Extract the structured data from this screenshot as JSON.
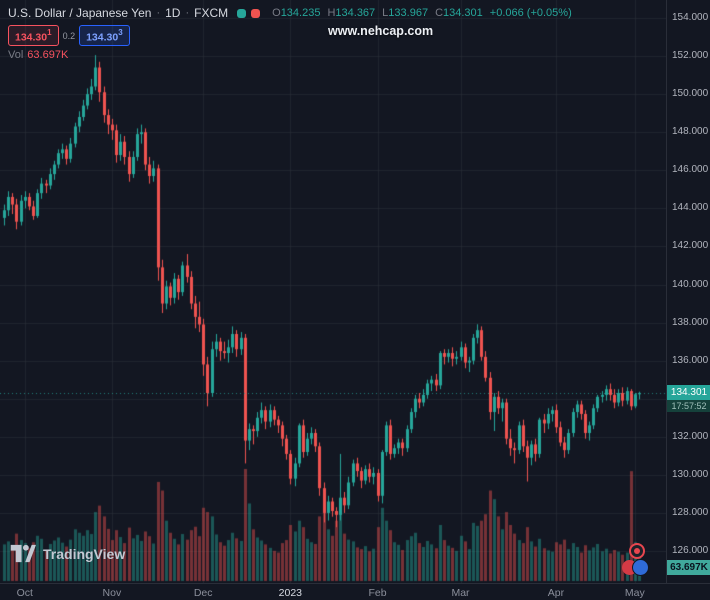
{
  "header": {
    "title": "U.S. Dollar / Japanese Yen",
    "separator": "·",
    "interval": "1D",
    "feed": "FXCM",
    "ohlc": {
      "o_label": "O",
      "o": "134.235",
      "h_label": "H",
      "h": "134.367",
      "l_label": "L",
      "l": "133.967",
      "c_label": "C",
      "c": "134.301",
      "change": "+0.066 (+0.05%)"
    },
    "bid": {
      "main": "134.30",
      "sup": "1"
    },
    "spread": "0.2",
    "ask": {
      "main": "134.30",
      "sup": "3"
    },
    "vol_label": "Vol",
    "vol_value": "63.697K"
  },
  "watermark_text": "www.nehcap.com",
  "logo": {
    "text": "TradingView"
  },
  "axis_badges": {
    "last_price": "134.301",
    "countdown": "17:57:52",
    "volume": "63.697K"
  },
  "chart_data": {
    "type": "candlestick",
    "title": "U.S. Dollar / Japanese Yen · 1D · FXCM",
    "symbol": "USD/JPY",
    "interval": "1D",
    "exchange": "FXCM",
    "legend_position": "top-left",
    "grid": true,
    "y_range": [
      126,
      154
    ],
    "y_ticks": [
      "154.000",
      "152.000",
      "150.000",
      "148.000",
      "146.000",
      "144.000",
      "142.000",
      "140.000",
      "138.000",
      "136.000",
      "134.000",
      "132.000",
      "130.000",
      "128.000",
      "126.000"
    ],
    "x_labels": [
      {
        "label": "Oct",
        "index": 5
      },
      {
        "label": "Nov",
        "index": 26
      },
      {
        "label": "Dec",
        "index": 48
      },
      {
        "label": "2023",
        "index": 69,
        "major": true
      },
      {
        "label": "Feb",
        "index": 90
      },
      {
        "label": "Mar",
        "index": 110
      },
      {
        "label": "Apr",
        "index": 133
      },
      {
        "label": "May",
        "index": 152
      }
    ],
    "last_price": 134.301,
    "last_volume_k": 63.697,
    "colors": {
      "bg": "#131722",
      "up": "#26a69a",
      "down": "#ef5350",
      "vol_up": "rgba(38,166,154,0.45)",
      "vol_down": "rgba(239,83,80,0.45)",
      "grid": "rgba(42,46,57,0.6)",
      "last_price_line": "rgba(38,166,154,0.75)",
      "accent_blue": "#2962ff",
      "accent_red": "#f7525f"
    },
    "candles": [
      [
        143.5,
        144.2,
        143.1,
        143.9,
        85
      ],
      [
        143.9,
        144.9,
        143.6,
        144.6,
        92
      ],
      [
        144.6,
        144.8,
        143.7,
        144.2,
        78
      ],
      [
        144.2,
        144.5,
        142.9,
        143.3,
        110
      ],
      [
        143.3,
        144.7,
        143.1,
        144.4,
        95
      ],
      [
        144.4,
        144.9,
        144.0,
        144.6,
        88
      ],
      [
        144.6,
        144.8,
        143.9,
        144.1,
        76
      ],
      [
        144.1,
        144.4,
        143.4,
        143.6,
        90
      ],
      [
        143.6,
        145.0,
        143.5,
        144.8,
        105
      ],
      [
        144.8,
        145.6,
        144.5,
        145.3,
        98
      ],
      [
        145.3,
        145.5,
        144.8,
        145.2,
        72
      ],
      [
        145.2,
        146.1,
        145.0,
        145.8,
        86
      ],
      [
        145.8,
        146.5,
        145.5,
        146.3,
        94
      ],
      [
        146.3,
        147.1,
        146.1,
        146.9,
        101
      ],
      [
        146.9,
        147.4,
        146.6,
        147.1,
        89
      ],
      [
        147.1,
        147.3,
        146.3,
        146.6,
        80
      ],
      [
        146.6,
        147.7,
        146.4,
        147.4,
        96
      ],
      [
        147.4,
        148.5,
        147.2,
        148.3,
        120
      ],
      [
        148.3,
        149.1,
        148.0,
        148.8,
        112
      ],
      [
        148.8,
        149.7,
        148.6,
        149.4,
        105
      ],
      [
        149.4,
        150.3,
        149.2,
        150.0,
        118
      ],
      [
        150.0,
        150.8,
        149.7,
        150.4,
        109
      ],
      [
        150.4,
        152.05,
        150.2,
        151.4,
        160
      ],
      [
        151.4,
        151.7,
        149.6,
        150.1,
        175
      ],
      [
        150.1,
        150.4,
        148.5,
        148.9,
        150
      ],
      [
        148.9,
        149.2,
        147.9,
        148.4,
        121
      ],
      [
        148.4,
        148.7,
        147.6,
        148.1,
        95
      ],
      [
        148.1,
        148.4,
        146.4,
        146.8,
        118
      ],
      [
        146.8,
        147.9,
        146.5,
        147.5,
        102
      ],
      [
        147.5,
        147.8,
        146.3,
        146.7,
        88
      ],
      [
        146.7,
        147.0,
        145.4,
        145.8,
        124
      ],
      [
        145.8,
        147.0,
        145.6,
        146.7,
        99
      ],
      [
        146.7,
        148.2,
        146.5,
        147.9,
        107
      ],
      [
        147.9,
        148.4,
        147.4,
        148.0,
        93
      ],
      [
        148.0,
        148.2,
        146.0,
        146.3,
        115
      ],
      [
        146.3,
        146.7,
        145.3,
        145.7,
        104
      ],
      [
        145.7,
        146.5,
        145.4,
        146.1,
        87
      ],
      [
        146.1,
        146.3,
        140.2,
        140.9,
        230
      ],
      [
        140.9,
        141.3,
        138.5,
        139.0,
        210
      ],
      [
        139.0,
        140.2,
        138.7,
        139.9,
        140
      ],
      [
        139.9,
        140.1,
        138.9,
        139.3,
        112
      ],
      [
        139.3,
        140.6,
        139.0,
        140.3,
        98
      ],
      [
        140.3,
        140.5,
        139.2,
        139.6,
        85
      ],
      [
        139.6,
        141.2,
        139.4,
        141.0,
        109
      ],
      [
        141.0,
        141.6,
        140.1,
        140.4,
        96
      ],
      [
        140.4,
        140.7,
        138.7,
        139.0,
        118
      ],
      [
        139.0,
        139.4,
        137.7,
        138.3,
        126
      ],
      [
        138.3,
        139.1,
        137.5,
        137.9,
        104
      ],
      [
        137.9,
        138.2,
        135.2,
        135.8,
        170
      ],
      [
        135.8,
        136.2,
        133.6,
        134.3,
        160
      ],
      [
        134.3,
        137.0,
        134.1,
        136.6,
        150
      ],
      [
        136.6,
        137.4,
        136.2,
        137.0,
        108
      ],
      [
        137.0,
        137.2,
        136.0,
        136.5,
        90
      ],
      [
        136.5,
        137.0,
        136.1,
        136.4,
        82
      ],
      [
        136.4,
        137.1,
        135.9,
        136.7,
        95
      ],
      [
        136.7,
        137.8,
        136.4,
        137.4,
        112
      ],
      [
        137.4,
        137.6,
        136.2,
        136.6,
        99
      ],
      [
        136.6,
        137.5,
        136.3,
        137.2,
        93
      ],
      [
        137.2,
        137.4,
        130.6,
        131.8,
        260
      ],
      [
        131.8,
        132.7,
        131.3,
        132.4,
        180
      ],
      [
        132.4,
        132.6,
        131.6,
        132.3,
        120
      ],
      [
        132.3,
        133.3,
        132.0,
        133.0,
        101
      ],
      [
        133.0,
        133.8,
        132.7,
        133.4,
        94
      ],
      [
        133.4,
        133.6,
        132.4,
        132.8,
        85
      ],
      [
        132.8,
        133.7,
        132.5,
        133.4,
        77
      ],
      [
        133.4,
        133.6,
        132.6,
        132.9,
        70
      ],
      [
        132.9,
        133.1,
        132.2,
        132.6,
        66
      ],
      [
        132.6,
        132.8,
        131.5,
        131.9,
        88
      ],
      [
        131.9,
        132.1,
        130.8,
        131.1,
        95
      ],
      [
        131.1,
        131.3,
        129.5,
        129.8,
        130
      ],
      [
        129.8,
        130.9,
        129.4,
        130.6,
        115
      ],
      [
        130.6,
        132.7,
        130.4,
        132.6,
        140
      ],
      [
        132.6,
        132.9,
        130.9,
        131.2,
        125
      ],
      [
        131.2,
        132.2,
        131.0,
        131.9,
        98
      ],
      [
        131.9,
        132.5,
        131.6,
        132.2,
        90
      ],
      [
        132.2,
        132.4,
        131.2,
        131.5,
        86
      ],
      [
        131.5,
        131.7,
        128.9,
        129.3,
        150
      ],
      [
        129.3,
        129.6,
        127.5,
        128.0,
        165
      ],
      [
        128.0,
        128.9,
        127.6,
        128.6,
        120
      ],
      [
        128.6,
        128.8,
        127.8,
        128.1,
        105
      ],
      [
        128.1,
        128.3,
        127.25,
        127.9,
        140
      ],
      [
        127.9,
        131.1,
        127.6,
        128.8,
        190
      ],
      [
        128.8,
        129.1,
        128.0,
        128.4,
        110
      ],
      [
        128.4,
        129.9,
        128.2,
        129.6,
        96
      ],
      [
        129.6,
        130.8,
        129.4,
        130.6,
        92
      ],
      [
        130.6,
        130.9,
        129.9,
        130.2,
        78
      ],
      [
        130.2,
        130.4,
        129.3,
        129.7,
        74
      ],
      [
        129.7,
        130.5,
        129.5,
        130.3,
        81
      ],
      [
        130.3,
        130.6,
        129.6,
        129.9,
        69
      ],
      [
        129.9,
        130.4,
        129.5,
        130.1,
        75
      ],
      [
        130.1,
        130.3,
        128.6,
        128.9,
        125
      ],
      [
        128.9,
        131.3,
        128.5,
        131.2,
        170
      ],
      [
        131.2,
        132.8,
        131.0,
        132.6,
        140
      ],
      [
        132.6,
        132.9,
        130.8,
        131.1,
        118
      ],
      [
        131.1,
        131.6,
        130.9,
        131.4,
        90
      ],
      [
        131.4,
        131.9,
        131.1,
        131.7,
        84
      ],
      [
        131.7,
        131.9,
        131.0,
        131.4,
        72
      ],
      [
        131.4,
        132.6,
        131.2,
        132.4,
        95
      ],
      [
        132.4,
        133.5,
        132.2,
        133.3,
        104
      ],
      [
        133.3,
        134.2,
        133.0,
        134.0,
        112
      ],
      [
        134.0,
        134.3,
        133.5,
        133.8,
        88
      ],
      [
        133.8,
        134.5,
        133.6,
        134.2,
        79
      ],
      [
        134.2,
        135.0,
        134.0,
        134.8,
        93
      ],
      [
        134.8,
        135.2,
        134.4,
        135.0,
        85
      ],
      [
        135.0,
        135.3,
        134.4,
        134.7,
        76
      ],
      [
        134.7,
        136.5,
        134.5,
        136.4,
        130
      ],
      [
        136.4,
        136.6,
        135.8,
        136.2,
        95
      ],
      [
        136.2,
        136.6,
        135.9,
        136.4,
        82
      ],
      [
        136.4,
        136.7,
        135.7,
        136.1,
        77
      ],
      [
        136.1,
        136.5,
        135.8,
        136.2,
        70
      ],
      [
        136.2,
        137.0,
        136.0,
        136.7,
        105
      ],
      [
        136.7,
        136.9,
        135.6,
        135.9,
        92
      ],
      [
        135.9,
        136.2,
        135.4,
        136.0,
        74
      ],
      [
        136.0,
        137.4,
        135.8,
        137.2,
        135
      ],
      [
        137.2,
        137.91,
        136.9,
        137.6,
        128
      ],
      [
        137.6,
        137.8,
        136.0,
        136.2,
        140
      ],
      [
        136.2,
        136.5,
        134.9,
        135.1,
        155
      ],
      [
        135.1,
        135.4,
        132.9,
        133.3,
        210
      ],
      [
        133.3,
        134.3,
        132.3,
        134.1,
        190
      ],
      [
        134.1,
        134.4,
        133.2,
        133.5,
        150
      ],
      [
        133.5,
        134.0,
        132.8,
        133.8,
        120
      ],
      [
        133.8,
        134.0,
        131.6,
        131.9,
        160
      ],
      [
        131.9,
        132.4,
        131.0,
        131.4,
        130
      ],
      [
        131.4,
        131.7,
        130.6,
        131.3,
        110
      ],
      [
        131.3,
        132.8,
        131.1,
        132.6,
        95
      ],
      [
        132.6,
        132.9,
        131.2,
        131.5,
        88
      ],
      [
        131.5,
        131.8,
        129.65,
        130.9,
        125
      ],
      [
        130.9,
        131.8,
        130.5,
        131.6,
        92
      ],
      [
        131.6,
        131.9,
        130.7,
        131.1,
        80
      ],
      [
        131.1,
        133.0,
        130.9,
        132.9,
        98
      ],
      [
        132.9,
        133.2,
        132.2,
        132.7,
        76
      ],
      [
        132.7,
        133.5,
        132.4,
        133.2,
        71
      ],
      [
        133.2,
        133.6,
        132.8,
        133.4,
        68
      ],
      [
        133.4,
        133.7,
        132.2,
        132.5,
        90
      ],
      [
        132.5,
        132.8,
        131.5,
        131.7,
        85
      ],
      [
        131.7,
        132.0,
        130.9,
        131.3,
        96
      ],
      [
        131.3,
        132.4,
        131.1,
        132.2,
        74
      ],
      [
        132.2,
        133.5,
        132.0,
        133.3,
        88
      ],
      [
        133.3,
        133.9,
        133.0,
        133.7,
        79
      ],
      [
        133.7,
        133.9,
        132.9,
        133.2,
        66
      ],
      [
        133.2,
        133.4,
        131.9,
        132.2,
        83
      ],
      [
        132.2,
        132.8,
        131.8,
        132.6,
        71
      ],
      [
        132.6,
        133.7,
        132.4,
        133.5,
        78
      ],
      [
        133.5,
        134.2,
        133.3,
        134.1,
        86
      ],
      [
        134.1,
        134.4,
        133.8,
        134.2,
        69
      ],
      [
        134.2,
        134.7,
        133.9,
        134.5,
        75
      ],
      [
        134.5,
        134.8,
        133.9,
        134.2,
        64
      ],
      [
        134.2,
        134.5,
        133.5,
        133.8,
        72
      ],
      [
        133.8,
        134.5,
        133.6,
        134.3,
        68
      ],
      [
        134.3,
        134.6,
        133.6,
        133.9,
        61
      ],
      [
        133.9,
        134.6,
        133.7,
        134.4,
        66
      ],
      [
        134.4,
        134.5,
        133.4,
        133.6,
        255
      ],
      [
        133.6,
        134.3,
        133.5,
        134.235,
        90
      ],
      [
        134.235,
        134.367,
        133.967,
        134.301,
        63.697
      ]
    ]
  }
}
